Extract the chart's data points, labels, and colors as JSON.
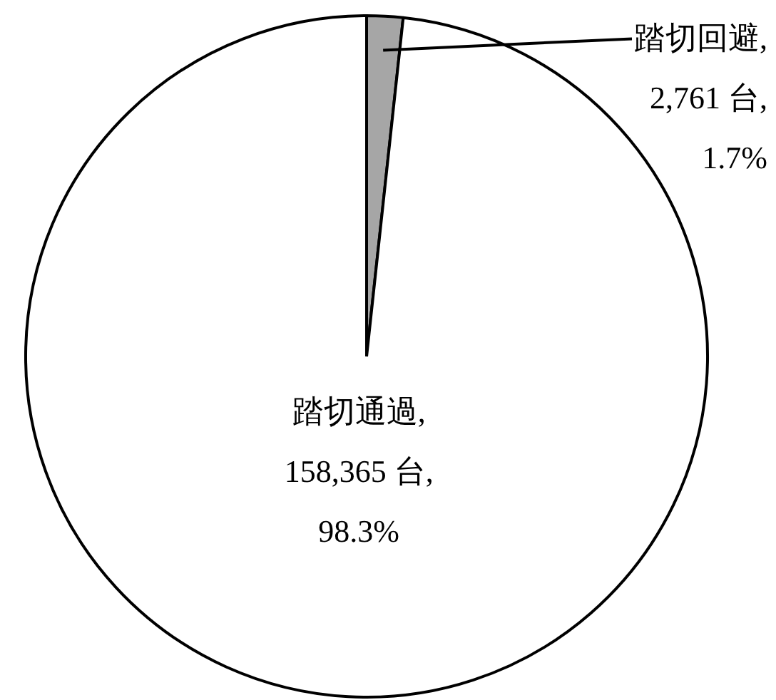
{
  "chart_data": {
    "type": "pie",
    "categories": [
      "踏切回避",
      "踏切通過"
    ],
    "values": [
      2761,
      158365
    ],
    "colors": [
      "#a6a6a6",
      "#ffffff"
    ],
    "value_labels": [
      ",\n2,761 台,\n1.7%",
      ",\n158,365 台,\n98.3%"
    ],
    "legend": false
  }
}
